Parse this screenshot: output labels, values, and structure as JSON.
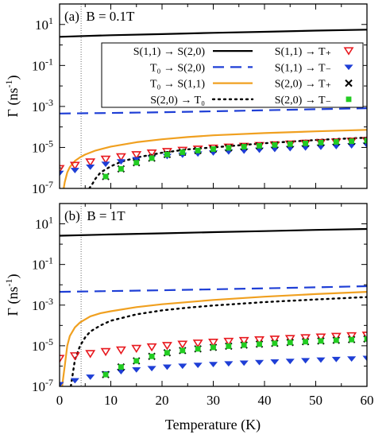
{
  "chart_data": {
    "type": "scatter",
    "y_scale": "log",
    "shared_x": {
      "label": "Temperature (K)",
      "range": [
        0,
        60
      ],
      "ticks": [
        0,
        10,
        20,
        30,
        40,
        50,
        60
      ],
      "tick_labels": [
        "0",
        "10",
        "20",
        "30",
        "40",
        "50",
        "60"
      ]
    },
    "y_axis": {
      "label_main": "Γ (ns",
      "label_sup": "-1",
      "label_close": ")",
      "range": [
        1e-07,
        100
      ],
      "ticks": [
        1e-07,
        1e-05,
        0.001,
        0.1,
        10
      ],
      "tick_labels": [
        {
          "base": "10",
          "exp": "-7"
        },
        {
          "base": "10",
          "exp": "-5"
        },
        {
          "base": "10",
          "exp": "-3"
        },
        {
          "base": "10",
          "exp": "-1"
        },
        {
          "base": "10",
          "exp": "1"
        }
      ]
    },
    "vertical_marker_x": 4.2,
    "legend": [
      {
        "key": "s11_s20",
        "label": "S(1,1) → S(2,0)",
        "kind": "line",
        "color": "#000000",
        "dash": "solid"
      },
      {
        "key": "t0_s20",
        "label": "T₀ → S(2,0)",
        "kind": "line",
        "color": "#1f3fd6",
        "dash": "long"
      },
      {
        "key": "t0_s11",
        "label": "T₀ → S(1,1)",
        "kind": "line",
        "color": "#f0a020",
        "dash": "solid"
      },
      {
        "key": "s20_t0",
        "label": "S(2,0) → T₀",
        "kind": "line",
        "color": "#000000",
        "dash": "dot"
      },
      {
        "key": "s11_tp",
        "label": "S(1,1) → T₊",
        "kind": "marker",
        "color": "#e8191f",
        "marker": "triangle-down-open"
      },
      {
        "key": "s11_tm",
        "label": "S(1,1) → T₋",
        "kind": "marker",
        "color": "#1f3fd6",
        "marker": "triangle-down-filled"
      },
      {
        "key": "s20_tp",
        "label": "S(2,0) → T₊",
        "kind": "marker",
        "color": "#000000",
        "marker": "cross"
      },
      {
        "key": "s20_tm",
        "label": "S(2,0) → T₋",
        "kind": "marker",
        "color": "#22cc22",
        "marker": "square"
      }
    ],
    "panels": [
      {
        "label": "(a)  B = 0.1T",
        "series": {
          "s11_s20": {
            "x": [
              0,
              10,
              20,
              30,
              40,
              50,
              60
            ],
            "y": [
              2.5,
              3.0,
              3.4,
              3.9,
              4.4,
              5.0,
              5.6
            ]
          },
          "t0_s20": {
            "x": [
              0,
              10,
              20,
              30,
              40,
              50,
              60
            ],
            "y": [
              0.00045,
              0.00048,
              0.00052,
              0.00058,
              0.00065,
              0.00073,
              0.00082
            ]
          },
          "t0_s11": {
            "x": [
              0.8,
              1,
              1.5,
              2,
              3,
              4,
              5,
              7,
              10,
              15,
              20,
              25,
              30,
              40,
              50,
              60
            ],
            "y": [
              1e-07,
              2e-07,
              6e-07,
              1.1e-06,
              2.2e-06,
              3.3e-06,
              4.5e-06,
              7e-06,
              1.1e-05,
              1.8e-05,
              2.5e-05,
              3.2e-05,
              3.9e-05,
              5e-05,
              6.1e-05,
              7.2e-05
            ]
          },
          "s20_t0": {
            "x": [
              5.8,
              6.5,
              7,
              8,
              10,
              12,
              15,
              20,
              25,
              30,
              40,
              50,
              60
            ],
            "y": [
              1e-07,
              1.8e-07,
              3e-07,
              6e-07,
              1.2e-06,
              2e-06,
              3.2e-06,
              5.5e-06,
              8e-06,
              1e-05,
              1.6e-05,
              2.3e-05,
              3e-05
            ]
          },
          "s11_tp": {
            "x": [
              0,
              3,
              6,
              9,
              12,
              15,
              18,
              21,
              24,
              27,
              30,
              33,
              36,
              39,
              42,
              45,
              48,
              51,
              54,
              57,
              60
            ],
            "y": [
              9e-07,
              1.3e-06,
              1.9e-06,
              2.6e-06,
              3.4e-06,
              4.3e-06,
              5.2e-06,
              6.1e-06,
              7e-06,
              8e-06,
              9e-06,
              1e-05,
              1.1e-05,
              1.2e-05,
              1.3e-05,
              1.42e-05,
              1.55e-05,
              1.68e-05,
              1.8e-05,
              1.95e-05,
              2.1e-05
            ]
          },
          "s11_tm": {
            "x": [
              0,
              3,
              6,
              9,
              12,
              15,
              18,
              21,
              24,
              27,
              30,
              33,
              36,
              39,
              42,
              45,
              48,
              51,
              54,
              57,
              60
            ],
            "y": [
              8e-07,
              1.1e-06,
              1.6e-06,
              2.2e-06,
              2.9e-06,
              3.7e-06,
              4.5e-06,
              5.3e-06,
              6.1e-06,
              7e-06,
              7.9e-06,
              8.8e-06,
              9.7e-06,
              1.07e-05,
              1.17e-05,
              1.28e-05,
              1.38e-05,
              1.5e-05,
              1.62e-05,
              1.75e-05,
              1.88e-05
            ]
          },
          "s20_tp": {
            "x": [
              9,
              12,
              15,
              18,
              21,
              24,
              27,
              30,
              33,
              36,
              39,
              42,
              45,
              48,
              51,
              54,
              57,
              60
            ],
            "y": [
              3.8e-07,
              9e-07,
              1.8e-06,
              3e-06,
              4.5e-06,
              5.8e-06,
              7e-06,
              8.3e-06,
              9.5e-06,
              1.08e-05,
              1.2e-05,
              1.32e-05,
              1.45e-05,
              1.58e-05,
              1.72e-05,
              1.86e-05,
              2e-05,
              2.15e-05
            ]
          },
          "s20_tm": {
            "x": [
              9,
              12,
              15,
              18,
              21,
              24,
              27,
              30,
              33,
              36,
              39,
              42,
              45,
              48,
              51,
              54,
              57,
              60
            ],
            "y": [
              3.8e-07,
              9e-07,
              1.8e-06,
              3e-06,
              4.5e-06,
              5.8e-06,
              7e-06,
              8.3e-06,
              9.5e-06,
              1.08e-05,
              1.2e-05,
              1.32e-05,
              1.45e-05,
              1.58e-05,
              1.72e-05,
              1.86e-05,
              2e-05,
              2.15e-05
            ]
          }
        }
      },
      {
        "label": "(b)  B = 1T",
        "series": {
          "s11_s20": {
            "x": [
              0,
              10,
              20,
              30,
              40,
              50,
              60
            ],
            "y": [
              2.6,
              3.0,
              3.4,
              3.9,
              4.4,
              5.0,
              5.6
            ]
          },
          "t0_s20": {
            "x": [
              0,
              10,
              20,
              30,
              40,
              50,
              60
            ],
            "y": [
              0.0045,
              0.0049,
              0.0054,
              0.006,
              0.0067,
              0.0075,
              0.0085
            ]
          },
          "t0_s11": {
            "x": [
              0.5,
              1,
              1.5,
              2,
              3,
              4,
              6,
              8,
              10,
              15,
              20,
              30,
              40,
              50,
              60
            ],
            "y": [
              1e-07,
              1e-06,
              1e-05,
              3e-05,
              8e-05,
              0.00014,
              0.00028,
              0.0004,
              0.0005,
              0.0008,
              0.0011,
              0.0018,
              0.0026,
              0.0035,
              0.0045
            ]
          },
          "s20_t0": {
            "x": [
              2.2,
              3,
              4,
              5,
              6,
              8,
              10,
              15,
              20,
              25,
              30,
              40,
              50,
              60
            ],
            "y": [
              1e-07,
              2e-06,
              1e-05,
              2.6e-05,
              5e-05,
              0.0001,
              0.00017,
              0.00035,
              0.00055,
              0.00075,
              0.00095,
              0.0014,
              0.0019,
              0.0025
            ]
          },
          "s11_tp": {
            "x": [
              0,
              3,
              6,
              9,
              12,
              15,
              18,
              21,
              24,
              27,
              30,
              33,
              36,
              39,
              42,
              45,
              48,
              51,
              54,
              57,
              60
            ],
            "y": [
              2.3e-06,
              3.1e-06,
              4e-06,
              5e-06,
              6e-06,
              7.2e-06,
              8.5e-06,
              1e-05,
              1.15e-05,
              1.3e-05,
              1.45e-05,
              1.6e-05,
              1.75e-05,
              1.9e-05,
              2.05e-05,
              2.2e-05,
              2.4e-05,
              2.6e-05,
              2.8e-05,
              3e-05,
              3.2e-05
            ]
          },
          "s11_tm": {
            "x": [
              0,
              3,
              6,
              9,
              12,
              15,
              18,
              21,
              24,
              27,
              30,
              33,
              36,
              39,
              42,
              45,
              48,
              51,
              54,
              57,
              60
            ],
            "y": [
              1.8e-07,
              2.8e-07,
              4.2e-07,
              6e-07,
              7.8e-07,
              9.5e-07,
              1.1e-06,
              1.3e-06,
              1.45e-06,
              1.6e-06,
              1.75e-06,
              1.9e-06,
              2.05e-06,
              2.2e-06,
              2.35e-06,
              2.5e-06,
              2.7e-06,
              2.9e-06,
              3.1e-06,
              3.3e-06,
              3.5e-06
            ]
          },
          "s20_tp": {
            "x": [
              9,
              12,
              15,
              18,
              21,
              24,
              27,
              30,
              33,
              36,
              39,
              42,
              45,
              48,
              51,
              54,
              57,
              60
            ],
            "y": [
              3.8e-07,
              9e-07,
              1.8e-06,
              3e-06,
              4.5e-06,
              5.8e-06,
              7e-06,
              8.3e-06,
              9.5e-06,
              1.08e-05,
              1.2e-05,
              1.32e-05,
              1.45e-05,
              1.58e-05,
              1.72e-05,
              1.86e-05,
              2e-05,
              2.15e-05
            ]
          },
          "s20_tm": {
            "x": [
              9,
              12,
              15,
              18,
              21,
              24,
              27,
              30,
              33,
              36,
              39,
              42,
              45,
              48,
              51,
              54,
              57,
              60
            ],
            "y": [
              3.8e-07,
              9e-07,
              1.8e-06,
              3e-06,
              4.5e-06,
              5.8e-06,
              7e-06,
              8.3e-06,
              9.5e-06,
              1.08e-05,
              1.2e-05,
              1.32e-05,
              1.45e-05,
              1.58e-05,
              1.72e-05,
              1.86e-05,
              2e-05,
              2.15e-05
            ]
          }
        }
      }
    ]
  }
}
